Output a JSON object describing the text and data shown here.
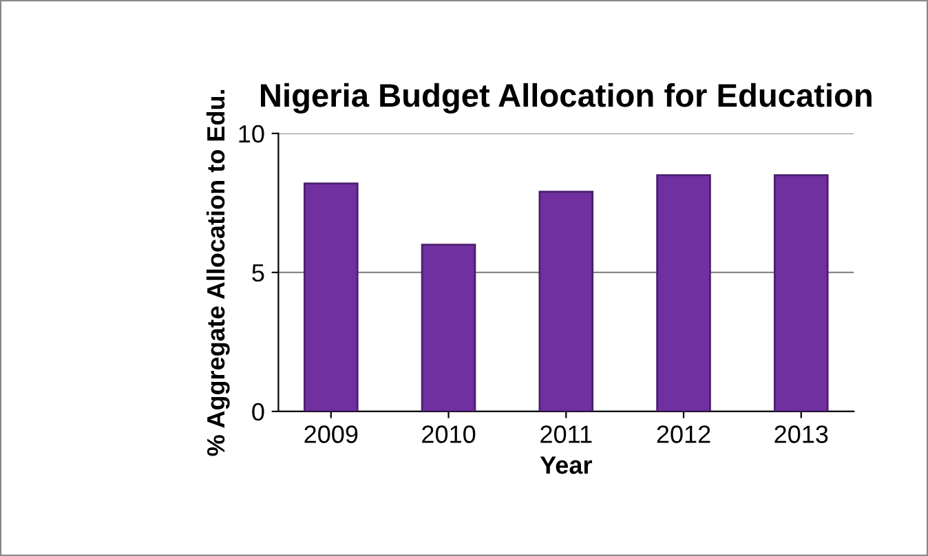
{
  "chart_data": {
    "type": "bar",
    "title": "Nigeria Budget Allocation for Education",
    "xlabel": "Year",
    "ylabel": "% Aggregate Allocation to Edu.",
    "categories": [
      "2009",
      "2010",
      "2011",
      "2012",
      "2013"
    ],
    "values": [
      8.2,
      6.0,
      7.9,
      8.5,
      8.5
    ],
    "color": "#7030a0",
    "ylim": [
      0,
      10
    ],
    "yticks": [
      0,
      5,
      10
    ],
    "grid": "y"
  }
}
